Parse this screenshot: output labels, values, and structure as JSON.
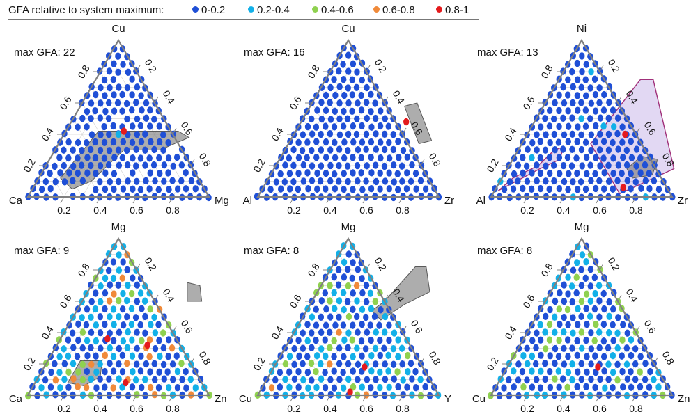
{
  "legend": {
    "title": "GFA relative to system maximum:",
    "entries": [
      {
        "label": "0-0.2",
        "color": "#1f4fd6"
      },
      {
        "label": "0.2-0.4",
        "color": "#12b0e8"
      },
      {
        "label": "0.4-0.6",
        "color": "#8fd14f"
      },
      {
        "label": "0.6-0.8",
        "color": "#f08a3a"
      },
      {
        "label": "0.8-1",
        "color": "#e41a1c"
      }
    ]
  },
  "chart_data": [
    {
      "type": "scatter",
      "subtype": "ternary",
      "title": "max GFA: 22",
      "max_gfa": 22,
      "apex_label": "Cu",
      "left_label": "Ca",
      "right_label": "Mg",
      "ticks": [
        "0.2",
        "0.4",
        "0.6",
        "0.8"
      ],
      "highlight_regions": [
        {
          "color": "#777777",
          "points": [
            [
              0.18,
              0.42
            ],
            [
              0.62,
              0.42
            ],
            [
              0.7,
              0.38
            ],
            [
              0.58,
              0.3
            ],
            [
              0.38,
              0.3
            ],
            [
              0.3,
              0.1
            ],
            [
              0.22,
              0.05
            ],
            [
              0.12,
              0.12
            ]
          ]
        }
      ],
      "notable_points": [
        {
          "frac_right": 0.32,
          "frac_apex": 0.42,
          "bin": "0.8-1"
        },
        {
          "frac_right": 0.3,
          "frac_apex": 0.4,
          "bin": "0.2-0.4"
        }
      ]
    },
    {
      "type": "scatter",
      "subtype": "ternary",
      "title": "max GFA: 16",
      "max_gfa": 16,
      "apex_label": "Cu",
      "left_label": "Al",
      "right_label": "Zr",
      "ticks": [
        "0.2",
        "0.4",
        "0.6",
        "0.8"
      ],
      "highlight_regions": [
        {
          "color": "#777777",
          "points": [
            [
              0.52,
              0.58
            ],
            [
              0.58,
              0.6
            ],
            [
              0.78,
              0.36
            ],
            [
              0.72,
              0.34
            ]
          ]
        }
      ],
      "notable_points": [
        {
          "frac_right": 0.58,
          "frac_apex": 0.48,
          "bin": "0.8-1"
        }
      ]
    },
    {
      "type": "scatter",
      "subtype": "ternary",
      "title": "max GFA: 13",
      "max_gfa": 13,
      "apex_label": "Ni",
      "left_label": "Al",
      "right_label": "Zr",
      "ticks": [
        "0.2",
        "0.4",
        "0.6",
        "0.8"
      ],
      "highlight_regions": [
        {
          "color": "#b79ee0",
          "points": [
            [
              0.45,
              0.75
            ],
            [
              0.52,
              0.75
            ],
            [
              0.92,
              0.18
            ],
            [
              0.7,
              0.02
            ],
            [
              0.6,
              0.12
            ],
            [
              0.38,
              0.34
            ]
          ]
        },
        {
          "color": "#b79ee0",
          "points": [
            [
              0.02,
              0.04
            ],
            [
              0.18,
              0.18
            ],
            [
              0.26,
              0.24
            ],
            [
              0.24,
              0.32
            ],
            [
              0.2,
              0.3
            ],
            [
              0.16,
              0.2
            ],
            [
              0.06,
              0.12
            ]
          ]
        },
        {
          "color": "#777777",
          "points": [
            [
              0.7,
              0.26
            ],
            [
              0.8,
              0.24
            ],
            [
              0.82,
              0.14
            ],
            [
              0.72,
              0.12
            ],
            [
              0.66,
              0.18
            ]
          ]
        }
      ],
      "notable_points": [
        {
          "frac_right": 0.54,
          "frac_apex": 0.4,
          "bin": "0.8-1"
        },
        {
          "frac_right": 0.7,
          "frac_apex": 0.06,
          "bin": "0.8-1"
        }
      ]
    },
    {
      "type": "scatter",
      "subtype": "ternary",
      "title": "max GFA: 9",
      "max_gfa": 9,
      "apex_label": "Mg",
      "left_label": "Ca",
      "right_label": "Zn",
      "ticks": [
        "0.2",
        "0.4",
        "0.6",
        "0.8"
      ],
      "highlight_regions": [
        {
          "color": "#777777",
          "points": [
            [
              0.52,
              0.72
            ],
            [
              0.6,
              0.7
            ],
            [
              0.66,
              0.6
            ],
            [
              0.58,
              0.6
            ]
          ]
        },
        {
          "color": "#777777",
          "points": [
            [
              0.18,
              0.22
            ],
            [
              0.3,
              0.22
            ],
            [
              0.34,
              0.12
            ],
            [
              0.28,
              0.06
            ],
            [
              0.18,
              0.08
            ]
          ]
        }
      ],
      "notable_points": [
        {
          "frac_right": 0.26,
          "frac_apex": 0.36,
          "bin": "0.8-1"
        },
        {
          "frac_right": 0.5,
          "frac_apex": 0.32,
          "bin": "0.8-1"
        },
        {
          "frac_right": 0.5,
          "frac_apex": 0.08,
          "bin": "0.8-1"
        }
      ]
    },
    {
      "type": "scatter",
      "subtype": "ternary",
      "title": "max GFA: 8",
      "max_gfa": 8,
      "apex_label": "Mg",
      "left_label": "Cu",
      "right_label": "Y",
      "ticks": [
        "0.2",
        "0.4",
        "0.6",
        "0.8"
      ],
      "highlight_regions": [
        {
          "color": "#777777",
          "points": [
            [
              0.46,
              0.82
            ],
            [
              0.52,
              0.82
            ],
            [
              0.62,
              0.66
            ],
            [
              0.52,
              0.58
            ],
            [
              0.44,
              0.48
            ],
            [
              0.36,
              0.54
            ],
            [
              0.4,
              0.6
            ]
          ]
        }
      ],
      "notable_points": [
        {
          "frac_right": 0.5,
          "frac_apex": 0.18,
          "bin": "0.8-1"
        },
        {
          "frac_right": 0.5,
          "frac_apex": 0.02,
          "bin": "0.8-1"
        }
      ]
    },
    {
      "type": "scatter",
      "subtype": "ternary",
      "title": "max GFA: 8",
      "max_gfa": 8,
      "apex_label": "Mg",
      "left_label": "Cu",
      "right_label": "Zn",
      "ticks": [
        "0.2",
        "0.4",
        "0.6",
        "0.8"
      ],
      "highlight_regions": [],
      "notable_points": [
        {
          "frac_right": 0.5,
          "frac_apex": 0.18,
          "bin": "0.8-1"
        }
      ]
    }
  ]
}
